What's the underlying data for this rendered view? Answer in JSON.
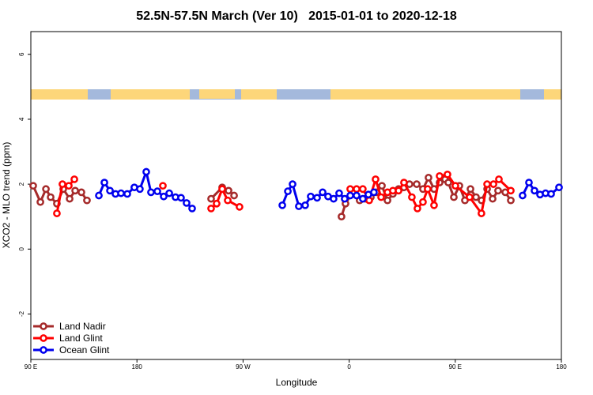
{
  "chart_data": {
    "type": "line",
    "title": "52.5N-57.5N March (Ver 10)   2015-01-01 to 2020-12-18",
    "x_label": "Longitude",
    "y_label": "XCO2 - MLO trend (ppm)",
    "xlim": [
      90,
      540
    ],
    "ylim": [
      -3.4,
      6.7
    ],
    "xticks": [
      {
        "value": 90,
        "label": "90 E"
      },
      180,
      {
        "value": 270,
        "label": "90 W"
      },
      {
        "value": 360,
        "label": "0"
      },
      {
        "value": 450,
        "label": "90 E"
      },
      {
        "value": 540,
        "label": "180"
      }
    ],
    "yticks": [
      -2,
      0,
      2,
      4,
      6
    ],
    "legend": "bottom-left",
    "series": [
      {
        "name": "Land Nadir",
        "color": "#a52a2a",
        "x": [
          92.0,
          98.1,
          102.8,
          106.8,
          112.1,
          117.5,
          122.9,
          127.6,
          132.9,
          137.6,
          null,
          242.9,
          252.3,
          257.7,
          262.4,
          null,
          353.5,
          356.9,
          362.9,
          368.9,
          373.6,
          378.4,
          383.1,
          387.8,
          392.5,
          397.1,
          401.9,
          406.5,
          411.2,
          417.3,
          422.6,
          427.3,
          432.0,
          436.7,
          441.4,
          444.1,
          448.8,
          453.5,
          458.2,
          462.9,
          467.6,
          472.3,
          477.0,
          481.7,
          486.3,
          492.4,
          497.1
        ],
        "values": [
          1.95,
          1.45,
          1.85,
          1.6,
          1.4,
          1.85,
          1.55,
          1.8,
          1.75,
          1.5,
          null,
          1.55,
          1.9,
          1.8,
          1.65,
          null,
          1.0,
          1.4,
          1.75,
          1.5,
          1.55,
          1.6,
          1.75,
          1.95,
          1.5,
          1.7,
          1.85,
          1.9,
          2.0,
          2.0,
          1.85,
          2.2,
          1.85,
          2.05,
          2.15,
          2.05,
          1.6,
          1.95,
          1.5,
          1.85,
          1.6,
          1.5,
          1.85,
          1.55,
          1.8,
          1.75,
          1.5
        ]
      },
      {
        "name": "Land Glint",
        "color": "#ff0000",
        "x": [
          112.1,
          116.8,
          122.2,
          126.9,
          null,
          202.0,
          null,
          242.9,
          247.6,
          252.3,
          257.0,
          267.0,
          null,
          360.9,
          366.3,
          371.6,
          377.0,
          382.4,
          387.1,
          392.5,
          397.1,
          401.9,
          406.5,
          413.2,
          417.9,
          422.6,
          426.6,
          432.0,
          436.7,
          443.4,
          450.1,
          462.2,
          472.2,
          477.0,
          482.4,
          487.0,
          497.1
        ],
        "values": [
          1.1,
          2.0,
          1.95,
          2.15,
          null,
          1.95,
          null,
          1.25,
          1.4,
          1.85,
          1.5,
          1.3,
          null,
          1.85,
          1.85,
          1.85,
          1.5,
          2.15,
          1.6,
          1.75,
          1.8,
          1.8,
          2.05,
          1.6,
          1.25,
          1.45,
          1.85,
          1.35,
          2.25,
          2.3,
          1.95,
          1.6,
          1.1,
          2.0,
          2.0,
          2.15,
          1.8
        ]
      },
      {
        "name": "Ocean Glint",
        "color": "#0000ee",
        "x": [
          147.7,
          152.4,
          157.1,
          161.8,
          166.5,
          171.8,
          177.8,
          182.5,
          187.9,
          191.9,
          197.3,
          202.7,
          207.4,
          212.7,
          217.4,
          222.1,
          226.8,
          null,
          303.3,
          308.0,
          312.0,
          317.3,
          322.7,
          327.4,
          332.8,
          337.5,
          342.1,
          346.8,
          351.5,
          356.2,
          360.9,
          366.3,
          371.6,
          376.3,
          381.0,
          null,
          507.1,
          512.5,
          517.2,
          521.9,
          526.6,
          531.3,
          538.0
        ],
        "values": [
          1.65,
          2.05,
          1.8,
          1.7,
          1.72,
          1.7,
          1.9,
          1.85,
          2.38,
          1.75,
          1.78,
          1.62,
          1.72,
          1.6,
          1.58,
          1.42,
          1.25,
          null,
          1.35,
          1.78,
          2.0,
          1.32,
          1.35,
          1.62,
          1.58,
          1.75,
          1.62,
          1.55,
          1.72,
          1.55,
          1.65,
          1.65,
          1.55,
          1.68,
          1.75,
          null,
          1.65,
          2.05,
          1.8,
          1.68,
          1.72,
          1.7,
          1.9
        ]
      }
    ]
  }
}
